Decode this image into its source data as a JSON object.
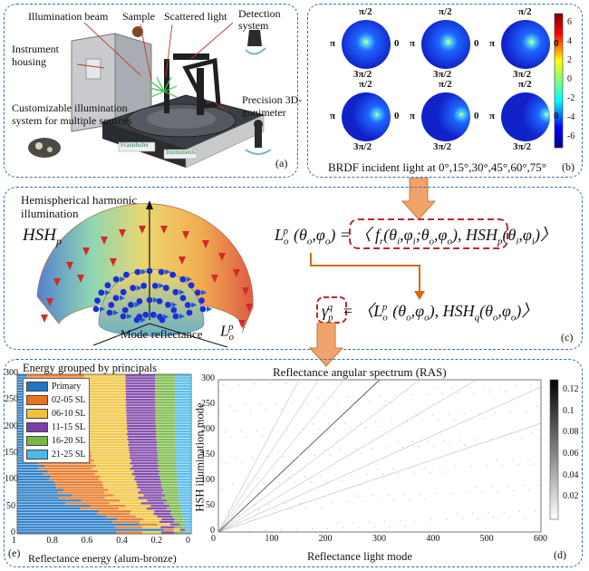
{
  "panel_a": {
    "tag": "(a)",
    "labels": {
      "illumination_beam": "Illumination beam",
      "sample": "Sample",
      "scattered_light": "Scattered light",
      "detection_system": "Detection system",
      "instrument_housing": "Instrument housing",
      "customizable": "Customizable illumination system for multiple sources",
      "goniometer": "Precision 3D-gonimeter"
    },
    "logos": [
      "Fraunhofer",
      "Instruments"
    ]
  },
  "panel_b": {
    "tag": "(b)",
    "caption": "BRDF incident light at 0°,15°,30°,45°,60°,75°",
    "pole_labels": {
      "top": "π/2",
      "bottom": "3π/2",
      "left": "π",
      "right": "0"
    },
    "colorbar_ticks": [
      "6",
      "4",
      "2",
      "0",
      "-2",
      "-4",
      "-6"
    ],
    "colorbar_range": [
      -7,
      7
    ]
  },
  "panel_c": {
    "tag": "(c)",
    "title": "Hemispherical harmonic illumination",
    "hsh_symbol": "HSH",
    "hsh_sub": "p",
    "mode_reflectance": "Mode reflectance",
    "eq1_lhs": "L",
    "eq1_rhs_f": "f",
    "eq1_rhs_hsh": "HSH",
    "eq2_lhs": "γ",
    "eq2_rhs_hsh": "HSH"
  },
  "panel_e": {
    "tag": "(e)",
    "title": "Energy grouped by principals",
    "xlabel": "Reflectance energy (alum-bronze)",
    "colors": {
      "Primary": "#1f77c4",
      "02-05 SL": "#e8731f",
      "06-10 SL": "#f0c33a",
      "11-15 SL": "#7b3fa6",
      "16-20 SL": "#77b643",
      "21-25 SL": "#4db8e8"
    }
  },
  "panel_d": {
    "tag": "(d)",
    "title": "Reflectance angular spectrum (RAS)",
    "xlabel": "Reflectance light mode",
    "ylabel": "HSH illumination mode",
    "colorbar_ticks": [
      "0.12",
      "0.1",
      "0.08",
      "0.06",
      "0.04",
      "0.02"
    ],
    "colorbar_range": [
      0,
      0.13
    ]
  },
  "chart_data": [
    {
      "type": "area",
      "title": "Energy grouped by principals",
      "xlabel": "Reflectance energy (alum-bronze)",
      "ylabel": "",
      "x_reversed": true,
      "xlim": [
        1,
        0
      ],
      "ylim": [
        0,
        300
      ],
      "x_ticks": [
        "1",
        "0.8",
        "0.6",
        "0.4",
        "0.2",
        "0"
      ],
      "y_ticks": [
        "0",
        "50",
        "100",
        "150",
        "200",
        "250",
        "300"
      ],
      "legend_position": "top-left",
      "series": [
        {
          "name": "Primary"
        },
        {
          "name": "02-05 SL"
        },
        {
          "name": "06-10 SL"
        },
        {
          "name": "11-15 SL"
        },
        {
          "name": "16-20 SL"
        },
        {
          "name": "21-25 SL"
        }
      ]
    },
    {
      "type": "heatmap",
      "title": "Reflectance angular spectrum (RAS)",
      "xlabel": "Reflectance light mode",
      "ylabel": "HSH illumination mode",
      "xlim": [
        0,
        600
      ],
      "ylim": [
        0,
        300
      ],
      "x_ticks": [
        "0",
        "100",
        "200",
        "300",
        "400",
        "500",
        "600"
      ],
      "y_ticks": [
        "0",
        "50",
        "100",
        "150",
        "200",
        "250",
        "300"
      ],
      "colorbar_ticks": [
        "0.12",
        "0.1",
        "0.08",
        "0.06",
        "0.04",
        "0.02"
      ]
    }
  ]
}
